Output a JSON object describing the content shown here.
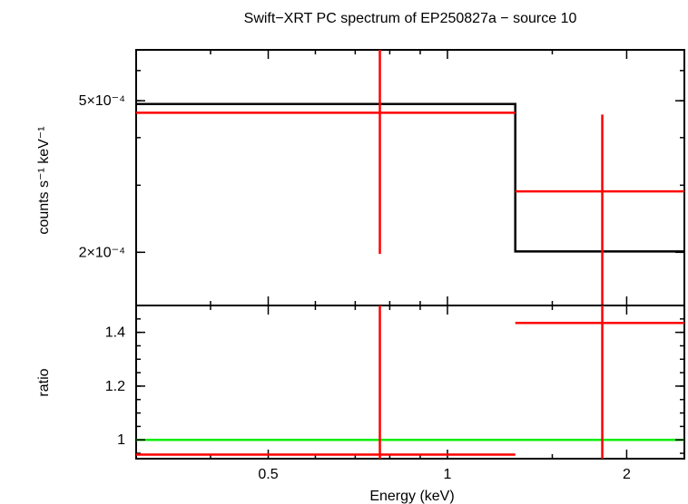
{
  "chart_data": {
    "title": "Swift−XRT PC spectrum of EP250827a − source 10",
    "xlabel": "Energy (keV)",
    "x_scale": "log",
    "xlim": [
      0.3,
      2.5
    ],
    "x_ticks": [
      {
        "value": 0.5,
        "label": "0.5"
      },
      {
        "value": 1,
        "label": "1"
      },
      {
        "value": 2,
        "label": "2"
      }
    ],
    "panels": [
      {
        "id": "spectrum",
        "type": "step",
        "ylabel": "counts s⁻¹ keV⁻¹",
        "y_scale": "log",
        "ylim": [
          0.000145,
          0.00068
        ],
        "y_ticks": [
          {
            "value": 0.0002,
            "label": "2×10⁻⁴"
          },
          {
            "value": 0.0005,
            "label": "5×10⁻⁴"
          }
        ],
        "series": [
          {
            "role": "model",
            "color": "#000000",
            "bins": [
              {
                "x_lo": 0.3,
                "x_hi": 1.3,
                "y": 0.00049
              },
              {
                "x_lo": 1.3,
                "x_hi": 2.5,
                "y": 0.000201
              }
            ]
          },
          {
            "role": "data",
            "color": "#ff0000",
            "points": [
              {
                "x": 0.77,
                "x_lo": 0.3,
                "x_hi": 1.3,
                "y": 0.000465,
                "y_lo": 0.000198,
                "y_hi": 0.00068
              },
              {
                "x": 1.82,
                "x_lo": 1.3,
                "x_hi": 2.5,
                "y": 0.000289,
                "y_lo": 0.000145,
                "y_hi": 0.00046
              }
            ]
          }
        ]
      },
      {
        "id": "ratio",
        "type": "ratio",
        "ylabel": "ratio",
        "y_scale": "linear",
        "ylim": [
          0.93,
          1.5
        ],
        "y_ticks": [
          {
            "value": 1,
            "label": "1"
          },
          {
            "value": 1.2,
            "label": "1.2"
          },
          {
            "value": 1.4,
            "label": "1.4"
          }
        ],
        "reference_line": {
          "y": 1,
          "color": "#00ee00"
        },
        "series": [
          {
            "role": "data",
            "color": "#ff0000",
            "points": [
              {
                "x": 0.77,
                "x_lo": 0.3,
                "x_hi": 1.3,
                "y": 0.945,
                "y_lo": 0.93,
                "y_hi": 1.5
              },
              {
                "x": 1.82,
                "x_lo": 1.3,
                "x_hi": 2.5,
                "y": 1.435,
                "y_lo": 0.93,
                "y_hi": 1.5
              }
            ]
          }
        ]
      }
    ]
  }
}
